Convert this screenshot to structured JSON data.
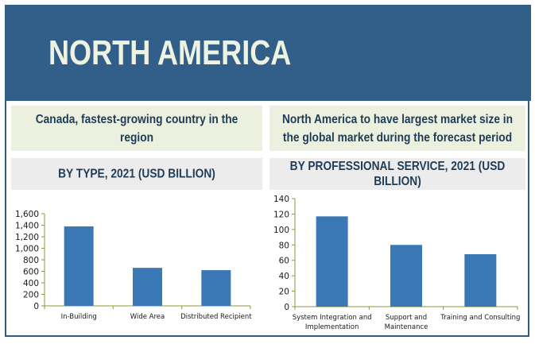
{
  "header": {
    "title": "NORTH AMERICA"
  },
  "panels": [
    {
      "callout": "Canada, fastest-growing country in the region",
      "subtitle": "BY TYPE, 2021 (USD BILLION)"
    },
    {
      "callout_lines": [
        "North America to have largest market size in",
        "the global market  during the forecast period"
      ],
      "subtitle_lines": [
        "BY PROFESSIONAL SERVICE, 2021 (USD",
        "BILLION)"
      ]
    }
  ],
  "colors": {
    "banner": "#325f8a",
    "bar": "#3a78b6",
    "axis": "#8a9a3a",
    "callout_bg": "#ecf0df",
    "subtitle_bg": "#ececec"
  },
  "chart_data": [
    {
      "type": "bar",
      "title": "BY TYPE, 2021 (USD BILLION)",
      "categories": [
        "In-Building",
        "Wide Area",
        "Distributed Recipient"
      ],
      "category_lines": [
        [
          "In-Building"
        ],
        [
          "Wide Area"
        ],
        [
          "Distributed Recipient"
        ]
      ],
      "values": [
        1380,
        660,
        620
      ],
      "ylim": [
        0,
        1600
      ],
      "yticks": [
        0,
        200,
        400,
        600,
        800,
        1000,
        1200,
        1400,
        1600
      ],
      "ytick_labels": [
        "0",
        "200",
        "400",
        "600",
        "800",
        "1,000",
        "1,200",
        "1,400",
        "1,600"
      ],
      "xlabel": "",
      "ylabel": "",
      "grid": false,
      "legend": "none"
    },
    {
      "type": "bar",
      "title": "BY PROFESSIONAL SERVICE, 2021 (USD BILLION)",
      "categories": [
        "System Integration and Implementation",
        "Support and Maintenance",
        "Training and Consulting"
      ],
      "category_lines": [
        [
          "System Integration and",
          "Implementation"
        ],
        [
          "Support and",
          "Maintenance"
        ],
        [
          "Training and Consulting"
        ]
      ],
      "values": [
        117,
        80,
        68
      ],
      "ylim": [
        0,
        140
      ],
      "yticks": [
        0,
        20,
        40,
        60,
        80,
        100,
        120,
        140
      ],
      "ytick_labels": [
        "0",
        "20",
        "40",
        "60",
        "80",
        "100",
        "120",
        "140"
      ],
      "xlabel": "",
      "ylabel": "",
      "grid": false,
      "legend": "none"
    }
  ]
}
